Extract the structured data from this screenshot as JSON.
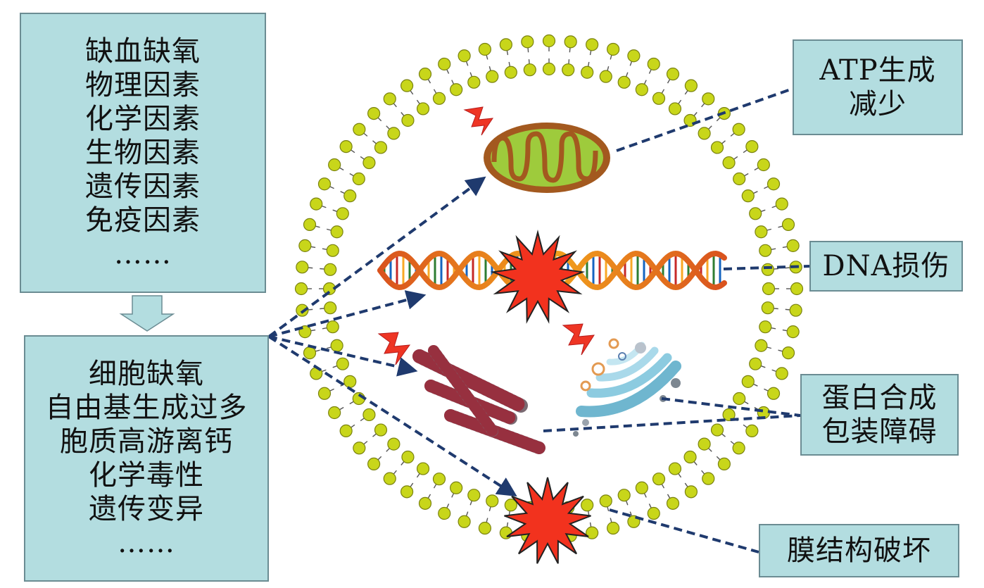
{
  "causes": {
    "items": [
      "缺血缺氧",
      "物理因素",
      "化学因素",
      "生物因素",
      "遗传因素",
      "免疫因素",
      "……"
    ]
  },
  "effects": {
    "items": [
      "细胞缺氧",
      "自由基生成过多",
      "胞质高游离钙",
      "化学毒性",
      "遗传变异",
      "……"
    ]
  },
  "outcomes": {
    "atp": [
      "ATP生成",
      "减少"
    ],
    "dna": [
      "DNA损伤"
    ],
    "protein": [
      "蛋白合成",
      "包装障碍"
    ],
    "membrane": [
      "膜结构破坏"
    ]
  },
  "colors": {
    "box_fill": "#b3dde0",
    "box_border": "#6b8c93",
    "lipid_head": "#c8d61a",
    "arrow": "#1f3a6e",
    "burst": "#f2321e",
    "mito_outer": "#a3591f",
    "mito_inner": "#9ecb3c"
  }
}
